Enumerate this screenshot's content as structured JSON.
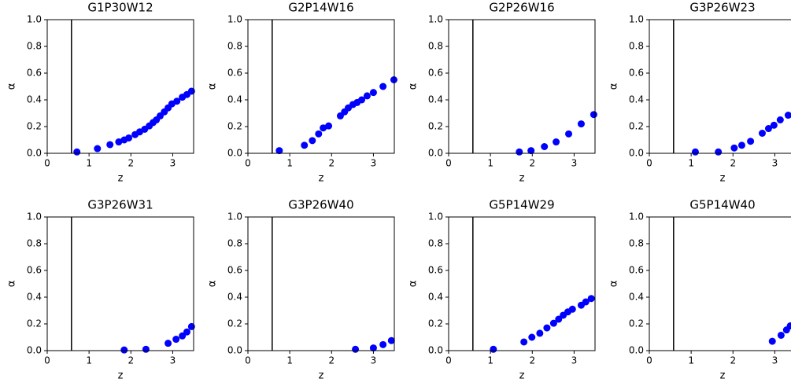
{
  "chart_data": [
    {
      "type": "scatter",
      "title": "G1P30W12",
      "xlabel": "z",
      "ylabel": "α",
      "color": "#0000ff",
      "vline": 0.58,
      "xlim": [
        0,
        3.5
      ],
      "ylim": [
        0,
        1
      ],
      "xticks": [
        0,
        1,
        2,
        3
      ],
      "yticks": [
        {
          "value": 0,
          "label": "0.0"
        },
        {
          "value": 0.2,
          "label": "0.2"
        },
        {
          "value": 0.4,
          "label": "0.4"
        },
        {
          "value": 0.6,
          "label": "0.6"
        },
        {
          "value": 0.8,
          "label": "0.8"
        },
        {
          "value": 1,
          "label": "1.0"
        }
      ],
      "x": [
        0.71,
        1.2,
        1.5,
        1.71,
        1.84,
        1.95,
        2.1,
        2.21,
        2.33,
        2.44,
        2.53,
        2.61,
        2.7,
        2.8,
        2.89,
        2.98,
        3.1,
        3.23,
        3.34,
        3.45
      ],
      "y": [
        0.01,
        0.035,
        0.065,
        0.085,
        0.1,
        0.115,
        0.14,
        0.16,
        0.18,
        0.205,
        0.23,
        0.25,
        0.28,
        0.31,
        0.34,
        0.37,
        0.39,
        0.42,
        0.44,
        0.465
      ]
    },
    {
      "type": "scatter",
      "title": "G2P14W16",
      "xlabel": "z",
      "ylabel": "α",
      "color": "#0000ff",
      "vline": 0.58,
      "xlim": [
        0,
        3.5
      ],
      "ylim": [
        0,
        1
      ],
      "xticks": [
        0,
        1,
        2,
        3
      ],
      "yticks": [
        {
          "value": 0,
          "label": "0.0"
        },
        {
          "value": 0.2,
          "label": "0.2"
        },
        {
          "value": 0.4,
          "label": "0.4"
        },
        {
          "value": 0.6,
          "label": "0.6"
        },
        {
          "value": 0.8,
          "label": "0.8"
        },
        {
          "value": 1,
          "label": "1.0"
        }
      ],
      "x": [
        0.75,
        1.35,
        1.54,
        1.69,
        1.8,
        1.93,
        2.21,
        2.31,
        2.4,
        2.51,
        2.61,
        2.72,
        2.85,
        3.0,
        3.23,
        3.49
      ],
      "y": [
        0.02,
        0.06,
        0.095,
        0.145,
        0.19,
        0.205,
        0.28,
        0.31,
        0.34,
        0.365,
        0.38,
        0.4,
        0.43,
        0.455,
        0.5,
        0.55
      ]
    },
    {
      "type": "scatter",
      "title": "G2P26W16",
      "xlabel": "z",
      "ylabel": "α",
      "color": "#0000ff",
      "vline": 0.58,
      "xlim": [
        0,
        3.5
      ],
      "ylim": [
        0,
        1
      ],
      "xticks": [
        0,
        1,
        2,
        3
      ],
      "yticks": [
        {
          "value": 0,
          "label": "0.0"
        },
        {
          "value": 0.2,
          "label": "0.2"
        },
        {
          "value": 0.4,
          "label": "0.4"
        },
        {
          "value": 0.6,
          "label": "0.6"
        },
        {
          "value": 0.8,
          "label": "0.8"
        },
        {
          "value": 1,
          "label": "1.0"
        }
      ],
      "x": [
        1.69,
        1.97,
        2.29,
        2.57,
        2.87,
        3.17,
        3.47
      ],
      "y": [
        0.01,
        0.02,
        0.05,
        0.085,
        0.145,
        0.22,
        0.29
      ]
    },
    {
      "type": "scatter",
      "title": "G3P26W23",
      "xlabel": "z",
      "ylabel": "α",
      "color": "#0000ff",
      "vline": 0.58,
      "xlim": [
        0,
        3.5
      ],
      "ylim": [
        0,
        1
      ],
      "xticks": [
        0,
        1,
        2,
        3
      ],
      "yticks": [
        {
          "value": 0,
          "label": "0.0"
        },
        {
          "value": 0.2,
          "label": "0.2"
        },
        {
          "value": 0.4,
          "label": "0.4"
        },
        {
          "value": 0.6,
          "label": "0.6"
        },
        {
          "value": 0.8,
          "label": "0.8"
        },
        {
          "value": 1,
          "label": "1.0"
        }
      ],
      "x": [
        1.1,
        1.65,
        2.03,
        2.21,
        2.42,
        2.7,
        2.85,
        2.98,
        3.13,
        3.32
      ],
      "y": [
        0.01,
        0.01,
        0.04,
        0.06,
        0.09,
        0.15,
        0.185,
        0.21,
        0.25,
        0.285
      ]
    },
    {
      "type": "scatter",
      "title": "G3P26W31",
      "xlabel": "z",
      "ylabel": "α",
      "color": "#0000ff",
      "vline": 0.58,
      "xlim": [
        0,
        3.5
      ],
      "ylim": [
        0,
        1
      ],
      "xticks": [
        0,
        1,
        2,
        3
      ],
      "yticks": [
        {
          "value": 0,
          "label": "0.0"
        },
        {
          "value": 0.2,
          "label": "0.2"
        },
        {
          "value": 0.4,
          "label": "0.4"
        },
        {
          "value": 0.6,
          "label": "0.6"
        },
        {
          "value": 0.8,
          "label": "0.8"
        },
        {
          "value": 1,
          "label": "1.0"
        }
      ],
      "x": [
        1.84,
        2.36,
        2.89,
        3.08,
        3.23,
        3.34,
        3.45
      ],
      "y": [
        0.005,
        0.01,
        0.055,
        0.085,
        0.11,
        0.14,
        0.18
      ]
    },
    {
      "type": "scatter",
      "title": "G3P26W40",
      "xlabel": "z",
      "ylabel": "α",
      "color": "#0000ff",
      "vline": 0.58,
      "xlim": [
        0,
        3.5
      ],
      "ylim": [
        0,
        1
      ],
      "xticks": [
        0,
        1,
        2,
        3
      ],
      "yticks": [
        {
          "value": 0,
          "label": "0.0"
        },
        {
          "value": 0.2,
          "label": "0.2"
        },
        {
          "value": 0.4,
          "label": "0.4"
        },
        {
          "value": 0.6,
          "label": "0.6"
        },
        {
          "value": 0.8,
          "label": "0.8"
        },
        {
          "value": 1,
          "label": "1.0"
        }
      ],
      "x": [
        2.57,
        3.0,
        3.23,
        3.43
      ],
      "y": [
        0.01,
        0.02,
        0.045,
        0.075
      ]
    },
    {
      "type": "scatter",
      "title": "G5P14W29",
      "xlabel": "z",
      "ylabel": "α",
      "color": "#0000ff",
      "vline": 0.58,
      "xlim": [
        0,
        3.5
      ],
      "ylim": [
        0,
        1
      ],
      "xticks": [
        0,
        1,
        2,
        3
      ],
      "yticks": [
        {
          "value": 0,
          "label": "0.0"
        },
        {
          "value": 0.2,
          "label": "0.2"
        },
        {
          "value": 0.4,
          "label": "0.4"
        },
        {
          "value": 0.6,
          "label": "0.6"
        },
        {
          "value": 0.8,
          "label": "0.8"
        },
        {
          "value": 1,
          "label": "1.0"
        }
      ],
      "x": [
        1.07,
        1.8,
        1.99,
        2.18,
        2.35,
        2.51,
        2.63,
        2.74,
        2.85,
        2.96,
        3.17,
        3.28,
        3.41
      ],
      "y": [
        0.01,
        0.065,
        0.1,
        0.13,
        0.17,
        0.205,
        0.235,
        0.265,
        0.29,
        0.31,
        0.34,
        0.365,
        0.39
      ]
    },
    {
      "type": "scatter",
      "title": "G5P14W40",
      "xlabel": "z",
      "ylabel": "α",
      "color": "#0000ff",
      "vline": 0.58,
      "xlim": [
        0,
        3.5
      ],
      "ylim": [
        0,
        1
      ],
      "xticks": [
        0,
        1,
        2,
        3
      ],
      "yticks": [
        {
          "value": 0,
          "label": "0.0"
        },
        {
          "value": 0.2,
          "label": "0.2"
        },
        {
          "value": 0.4,
          "label": "0.4"
        },
        {
          "value": 0.6,
          "label": "0.6"
        },
        {
          "value": 0.8,
          "label": "0.8"
        },
        {
          "value": 1,
          "label": "1.0"
        }
      ],
      "x": [
        2.94,
        3.15,
        3.28,
        3.37
      ],
      "y": [
        0.07,
        0.115,
        0.155,
        0.185
      ]
    }
  ]
}
